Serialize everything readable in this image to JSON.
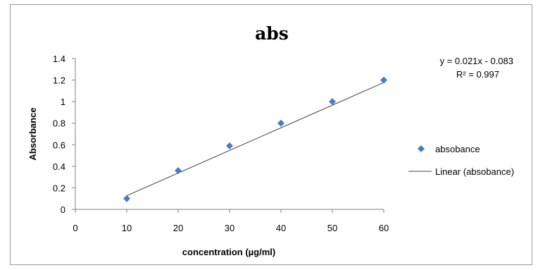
{
  "chart_data": {
    "type": "scatter",
    "title": "abs",
    "xlabel": "concentration (µg/ml)",
    "ylabel": "Absorbance",
    "xlim": [
      0,
      60
    ],
    "ylim": [
      0,
      1.4
    ],
    "xticks": [
      "0",
      "10",
      "20",
      "30",
      "40",
      "50",
      "60"
    ],
    "yticks": [
      "0",
      "0.2",
      "0.4",
      "0.6",
      "0.8",
      "1",
      "1.2",
      "1.4"
    ],
    "grid": false,
    "series": [
      {
        "name": "absobance",
        "x": [
          10,
          20,
          30,
          40,
          50,
          60
        ],
        "y": [
          0.1,
          0.36,
          0.59,
          0.8,
          1.0,
          1.2
        ],
        "marker": "diamond",
        "color": "#4a7ebb"
      }
    ],
    "trendline": {
      "name": "Linear (absobance)",
      "slope": 0.021,
      "intercept": -0.083,
      "x_range": [
        10,
        60
      ],
      "color": "#404040"
    },
    "equation": "y = 0.021x - 0.083",
    "r_squared_label": "R² = 0.997",
    "legend": {
      "position": "right",
      "entries": [
        "absobance",
        "Linear (absobance)"
      ]
    }
  }
}
